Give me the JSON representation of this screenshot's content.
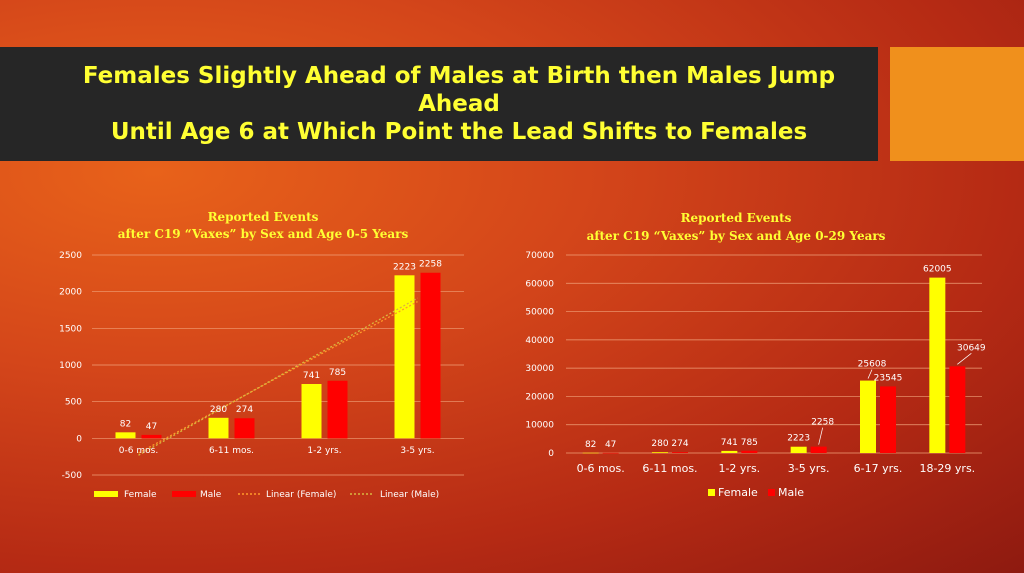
{
  "slide": {
    "title_line1": "Females Slightly Ahead of Males at Birth then Males Jump Ahead",
    "title_line2": "Until Age 6 at Which Point the Lead Shifts to Females"
  },
  "colors": {
    "female": "#ffff00",
    "male": "#ff0000",
    "title_text": "#ffff33",
    "title_band": "#262626",
    "accent_box": "#f0901c"
  },
  "chart_data": [
    {
      "type": "bar",
      "title_line1": "Reported Events",
      "title_line2": "after C19 “Vaxes” by Sex and Age 0-5 Years",
      "categories": [
        "0-6 mos.",
        "6-11 mos.",
        "1-2 yrs.",
        "3-5 yrs."
      ],
      "series": [
        {
          "name": "Female",
          "values": [
            82,
            280,
            741,
            2223
          ]
        },
        {
          "name": "Male",
          "values": [
            47,
            274,
            785,
            2258
          ]
        }
      ],
      "trendlines": [
        "Linear (Female)",
        "Linear (Male)"
      ],
      "yticks": [
        "2500",
        "2000",
        "1500",
        "1000",
        "500",
        "0",
        "-500"
      ],
      "ylim": [
        -500,
        2500
      ],
      "grid": true,
      "legend": "bottom"
    },
    {
      "type": "bar",
      "title_line1": "Reported Events",
      "title_line2": "after C19 “Vaxes” by Sex and Age 0-29 Years",
      "categories": [
        "0-6 mos.",
        "6-11 mos.",
        "1-2 yrs.",
        "3-5 yrs.",
        "6-17 yrs.",
        "18-29 yrs."
      ],
      "series": [
        {
          "name": "Female",
          "values": [
            82,
            280,
            741,
            2223,
            25608,
            62005
          ]
        },
        {
          "name": "Male",
          "values": [
            47,
            274,
            785,
            2258,
            23545,
            30649
          ]
        }
      ],
      "yticks": [
        "70000",
        "60000",
        "50000",
        "40000",
        "30000",
        "20000",
        "10000",
        "0"
      ],
      "ylim": [
        0,
        70000
      ],
      "grid": true,
      "legend": "bottom"
    }
  ]
}
